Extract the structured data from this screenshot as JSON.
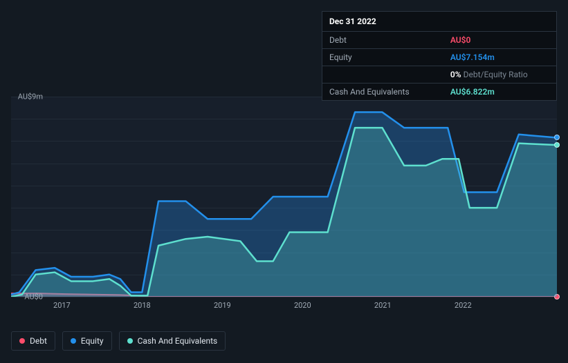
{
  "chart": {
    "type": "area",
    "background_color": "#171f2b",
    "page_background": "#131a22",
    "grid_color": "#222c38",
    "text_color": "#a0aab5",
    "ylim": [
      0,
      9
    ],
    "y_ticks": [
      {
        "v": 9,
        "label": "AU$9m"
      },
      {
        "v": 0,
        "label": "AU$0"
      }
    ],
    "grid_values": [
      0,
      1,
      2,
      3,
      4,
      5,
      6,
      7,
      8,
      9
    ],
    "x_years": [
      "2017",
      "2018",
      "2019",
      "2020",
      "2021",
      "2022"
    ],
    "x_year_positions_pct": [
      9.3,
      24.0,
      38.7,
      53.4,
      68.1,
      82.8
    ],
    "series": [
      {
        "id": "debt",
        "label": "Debt",
        "color": "#ff4d6b",
        "fill_opacity": 0.35,
        "line_width": 2,
        "points": [
          [
            0,
            0.15
          ],
          [
            5,
            0.15
          ],
          [
            10,
            0.12
          ],
          [
            15,
            0.1
          ],
          [
            20,
            0.08
          ],
          [
            23,
            0.05
          ],
          [
            25,
            0
          ],
          [
            100,
            0
          ]
        ]
      },
      {
        "id": "equity",
        "label": "Equity",
        "color": "#2390ec",
        "fill_opacity": 0.3,
        "line_width": 2.5,
        "points": [
          [
            0,
            0.1
          ],
          [
            1.5,
            0.2
          ],
          [
            4.5,
            1.2
          ],
          [
            8,
            1.3
          ],
          [
            11,
            0.9
          ],
          [
            15,
            0.9
          ],
          [
            18,
            1.0
          ],
          [
            20,
            0.8
          ],
          [
            22,
            0.2
          ],
          [
            24,
            0.2
          ],
          [
            27,
            4.3
          ],
          [
            32,
            4.3
          ],
          [
            36,
            3.5
          ],
          [
            44,
            3.5
          ],
          [
            48,
            4.5
          ],
          [
            58,
            4.5
          ],
          [
            63,
            8.3
          ],
          [
            68,
            8.3
          ],
          [
            72,
            7.6
          ],
          [
            80,
            7.6
          ],
          [
            83,
            4.7
          ],
          [
            89,
            4.7
          ],
          [
            93,
            7.3
          ],
          [
            100,
            7.154
          ]
        ]
      },
      {
        "id": "cash",
        "label": "Cash And Equivalents",
        "color": "#5ee0cf",
        "fill_opacity": 0.25,
        "line_width": 2.5,
        "points": [
          [
            0,
            0
          ],
          [
            2,
            0.1
          ],
          [
            4.5,
            1.0
          ],
          [
            8,
            1.1
          ],
          [
            11,
            0.7
          ],
          [
            15,
            0.7
          ],
          [
            18,
            0.8
          ],
          [
            20,
            0.5
          ],
          [
            22,
            0.05
          ],
          [
            25,
            0.05
          ],
          [
            27,
            2.3
          ],
          [
            32,
            2.6
          ],
          [
            36,
            2.7
          ],
          [
            42,
            2.5
          ],
          [
            45,
            1.6
          ],
          [
            48,
            1.6
          ],
          [
            51,
            2.9
          ],
          [
            58,
            2.9
          ],
          [
            63,
            7.6
          ],
          [
            68,
            7.6
          ],
          [
            72,
            5.9
          ],
          [
            76,
            5.9
          ],
          [
            79,
            6.2
          ],
          [
            82,
            6.2
          ],
          [
            84,
            4.0
          ],
          [
            89,
            4.0
          ],
          [
            93,
            6.9
          ],
          [
            100,
            6.822
          ]
        ]
      }
    ]
  },
  "tooltip": {
    "title": "Dec 31 2022",
    "rows": [
      {
        "label": "Debt",
        "value": "AU$0",
        "color": "#ff4d6b"
      },
      {
        "label": "Equity",
        "value": "AU$7.154m",
        "color": "#2390ec"
      },
      {
        "label": "",
        "value_prefix": "0%",
        "value_suffix": " Debt/Equity Ratio",
        "prefix_color": "#ffffff",
        "suffix_color": "#7a8591"
      },
      {
        "label": "Cash And Equivalents",
        "value": "AU$6.822m",
        "color": "#5ee0cf"
      }
    ]
  },
  "legend": {
    "items": [
      {
        "id": "debt",
        "label": "Debt",
        "color": "#ff4d6b"
      },
      {
        "id": "equity",
        "label": "Equity",
        "color": "#2390ec"
      },
      {
        "id": "cash",
        "label": "Cash And Equivalents",
        "color": "#5ee0cf"
      }
    ]
  }
}
